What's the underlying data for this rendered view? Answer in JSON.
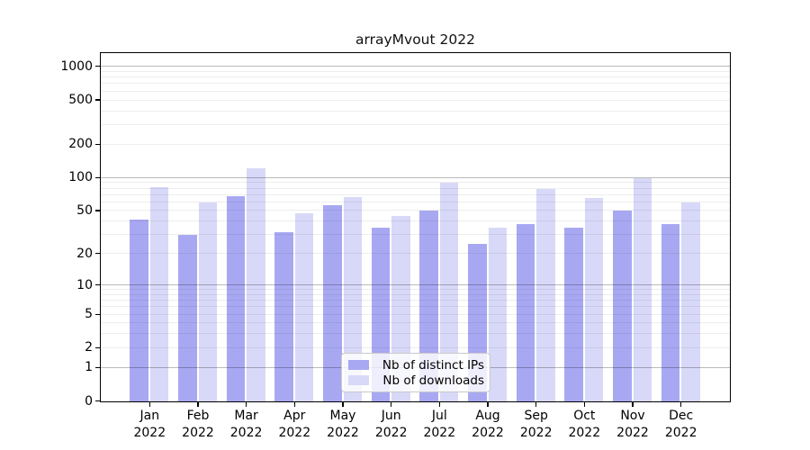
{
  "title": "arrayMvout 2022",
  "chart_data": {
    "type": "bar",
    "categories": [
      "Jan 2022",
      "Feb 2022",
      "Mar 2022",
      "Apr 2022",
      "May 2022",
      "Jun 2022",
      "Jul 2022",
      "Aug 2022",
      "Sep 2022",
      "Oct 2022",
      "Nov 2022",
      "Dec 2022"
    ],
    "series": [
      {
        "name": "Nb of distinct IPs",
        "color": "#a8a8f2",
        "values": [
          42,
          30,
          68,
          32,
          57,
          35,
          50,
          25,
          38,
          35,
          50,
          38
        ]
      },
      {
        "name": "Nb of downloads",
        "color": "#d8d8f8",
        "values": [
          82,
          60,
          122,
          48,
          67,
          45,
          90,
          35,
          80,
          66,
          100,
          60
        ]
      }
    ],
    "yscale": "log10(1+y)",
    "yticks": [
      0,
      1,
      2,
      5,
      10,
      20,
      50,
      100,
      200,
      500,
      1000
    ],
    "ylim": [
      0,
      1292
    ],
    "grid": "major ticks dark, minor log steps light",
    "legend_position": "lower center",
    "axis_color": "#000000",
    "background_color": "#ffffff"
  }
}
